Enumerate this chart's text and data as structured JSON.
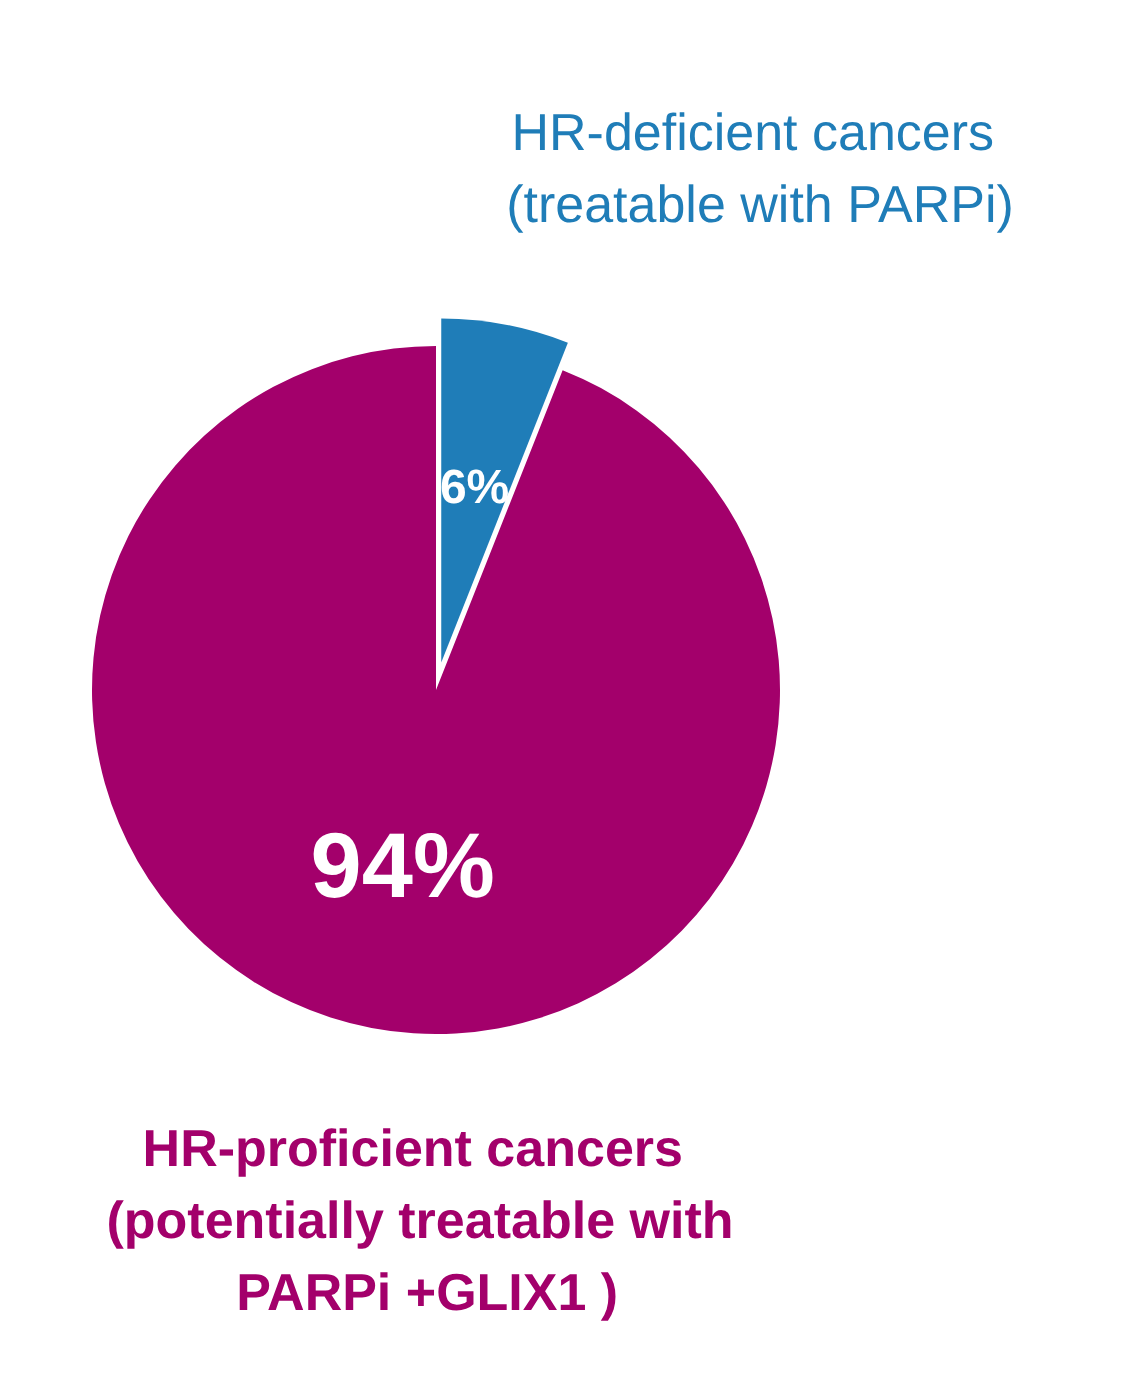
{
  "chart_data": {
    "type": "pie",
    "categories": [
      "HR-deficient cancers (treatable with PARPi)",
      "HR-proficient cancers (potentially treatable with PARPi +GLIX1 )"
    ],
    "values": [
      6,
      94
    ],
    "colors": [
      "#1f7db8",
      "#a3006b"
    ],
    "value_labels": [
      "6%",
      "94%"
    ],
    "legend": false
  }
}
